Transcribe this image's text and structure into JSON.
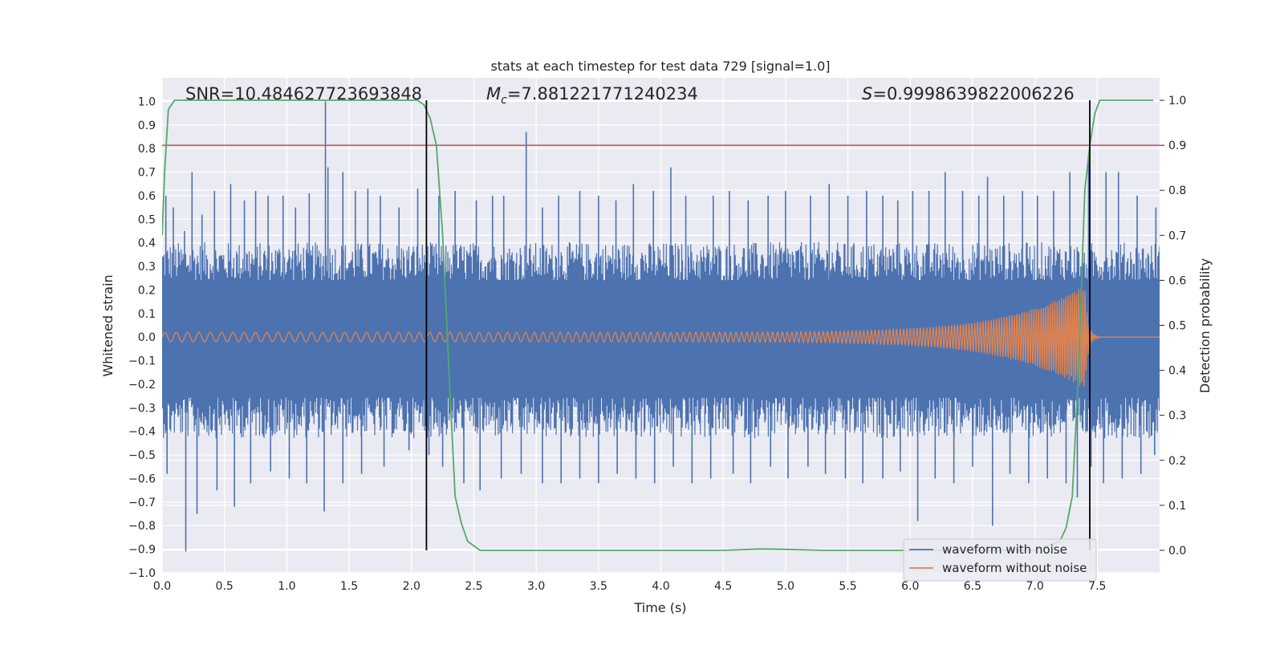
{
  "chart_data": {
    "type": "line",
    "title": "stats at each timestep for test data 729 [signal=1.0]",
    "xlabel": "Time (s)",
    "ylabel_left": "Whitened strain",
    "ylabel_right": "Detection probability",
    "xlim": [
      0.0,
      8.0
    ],
    "ylim_left": [
      -1.0,
      1.1
    ],
    "ylim_right": [
      -0.05,
      1.05
    ],
    "x_ticks": [
      "0.0",
      "0.5",
      "1.0",
      "1.5",
      "2.0",
      "2.5",
      "3.0",
      "3.5",
      "4.0",
      "4.5",
      "5.0",
      "5.5",
      "6.0",
      "6.5",
      "7.0",
      "7.5"
    ],
    "y_ticks_left": [
      "−1.0",
      "−0.9",
      "−0.8",
      "−0.7",
      "−0.6",
      "−0.5",
      "−0.4",
      "−0.3",
      "−0.2",
      "−0.1",
      "0.0",
      "0.1",
      "0.2",
      "0.3",
      "0.4",
      "0.5",
      "0.6",
      "0.7",
      "0.8",
      "0.9",
      "1.0"
    ],
    "y_ticks_right": [
      "0.0",
      "0.1",
      "0.2",
      "0.3",
      "0.4",
      "0.5",
      "0.6",
      "0.7",
      "0.8",
      "0.9",
      "1.0"
    ],
    "grid": true,
    "background": "#eaeaf2",
    "annotations": {
      "snr": "SNR=10.484627723693848",
      "mc_prefix": "M",
      "mc_sub": "c",
      "mc_value": "=7.881221771240234",
      "s_prefix": "S",
      "s_value": "=0.9998639822006226"
    },
    "threshold": {
      "value": 0.9,
      "axis": "right",
      "color": "#c44e52"
    },
    "vertical_lines": [
      2.12,
      7.44
    ],
    "legend": {
      "placement": "lower-right"
    },
    "series": [
      {
        "name": "waveform with noise",
        "color": "#4c72b0",
        "axis": "left",
        "summary": {
          "max_peak": 1.0,
          "min_peak": -0.91,
          "core_band": [
            -0.33,
            0.31
          ]
        },
        "upper_spikes": [
          [
            0.03,
            0.6
          ],
          [
            0.09,
            0.55
          ],
          [
            0.18,
            0.45
          ],
          [
            0.24,
            0.7
          ],
          [
            0.32,
            0.52
          ],
          [
            0.42,
            0.62
          ],
          [
            0.55,
            0.65
          ],
          [
            0.66,
            0.58
          ],
          [
            0.75,
            0.62
          ],
          [
            0.85,
            0.6
          ],
          [
            0.97,
            0.6
          ],
          [
            1.07,
            0.55
          ],
          [
            1.18,
            0.61
          ],
          [
            1.31,
            1.0
          ],
          [
            1.33,
            0.72
          ],
          [
            1.45,
            0.7
          ],
          [
            1.55,
            0.62
          ],
          [
            1.65,
            0.63
          ],
          [
            1.75,
            0.6
          ],
          [
            1.9,
            0.55
          ],
          [
            2.05,
            0.63
          ],
          [
            2.22,
            0.6
          ],
          [
            2.35,
            0.62
          ],
          [
            2.52,
            0.58
          ],
          [
            2.65,
            0.6
          ],
          [
            2.74,
            0.6
          ],
          [
            2.92,
            0.87
          ],
          [
            3.05,
            0.55
          ],
          [
            3.18,
            0.6
          ],
          [
            3.35,
            0.62
          ],
          [
            3.5,
            0.6
          ],
          [
            3.64,
            0.58
          ],
          [
            3.78,
            0.65
          ],
          [
            3.94,
            0.62
          ],
          [
            4.08,
            0.72
          ],
          [
            4.2,
            0.6
          ],
          [
            4.42,
            0.6
          ],
          [
            4.55,
            0.62
          ],
          [
            4.7,
            0.58
          ],
          [
            4.86,
            0.6
          ],
          [
            5.0,
            0.62
          ],
          [
            5.2,
            0.6
          ],
          [
            5.35,
            0.65
          ],
          [
            5.5,
            0.6
          ],
          [
            5.65,
            0.62
          ],
          [
            5.78,
            0.6
          ],
          [
            5.9,
            0.58
          ],
          [
            6.02,
            0.62
          ],
          [
            6.15,
            0.62
          ],
          [
            6.28,
            0.7
          ],
          [
            6.42,
            0.62
          ],
          [
            6.55,
            0.6
          ],
          [
            6.62,
            0.68
          ],
          [
            6.75,
            0.6
          ],
          [
            6.9,
            0.62
          ],
          [
            7.02,
            0.6
          ],
          [
            7.15,
            0.62
          ],
          [
            7.28,
            0.7
          ],
          [
            7.43,
            0.75
          ],
          [
            7.57,
            0.7
          ],
          [
            7.67,
            0.7
          ],
          [
            7.82,
            0.6
          ],
          [
            7.97,
            0.55
          ]
        ],
        "lower_spikes": [
          [
            0.04,
            -0.58
          ],
          [
            0.19,
            -0.91
          ],
          [
            0.28,
            -0.75
          ],
          [
            0.44,
            -0.65
          ],
          [
            0.58,
            -0.72
          ],
          [
            0.71,
            -0.62
          ],
          [
            0.87,
            -0.57
          ],
          [
            1.02,
            -0.6
          ],
          [
            1.16,
            -0.62
          ],
          [
            1.3,
            -0.74
          ],
          [
            1.45,
            -0.62
          ],
          [
            1.6,
            -0.58
          ],
          [
            1.78,
            -0.55
          ],
          [
            1.98,
            -0.48
          ],
          [
            2.14,
            -0.5
          ],
          [
            2.25,
            -0.55
          ],
          [
            2.42,
            -0.62
          ],
          [
            2.55,
            -0.65
          ],
          [
            2.72,
            -0.6
          ],
          [
            2.88,
            -0.58
          ],
          [
            3.05,
            -0.62
          ],
          [
            3.2,
            -0.62
          ],
          [
            3.35,
            -0.6
          ],
          [
            3.5,
            -0.62
          ],
          [
            3.65,
            -0.58
          ],
          [
            3.8,
            -0.6
          ],
          [
            3.95,
            -0.62
          ],
          [
            4.1,
            -0.55
          ],
          [
            4.25,
            -0.62
          ],
          [
            4.4,
            -0.6
          ],
          [
            4.58,
            -0.58
          ],
          [
            4.72,
            -0.62
          ],
          [
            4.88,
            -0.55
          ],
          [
            5.02,
            -0.6
          ],
          [
            5.18,
            -0.55
          ],
          [
            5.32,
            -0.58
          ],
          [
            5.48,
            -0.6
          ],
          [
            5.62,
            -0.62
          ],
          [
            5.78,
            -0.6
          ],
          [
            5.92,
            -0.57
          ],
          [
            6.06,
            -0.78
          ],
          [
            6.2,
            -0.6
          ],
          [
            6.35,
            -0.62
          ],
          [
            6.5,
            -0.55
          ],
          [
            6.66,
            -0.8
          ],
          [
            6.8,
            -0.58
          ],
          [
            6.95,
            -0.62
          ],
          [
            7.1,
            -0.6
          ],
          [
            7.25,
            -0.62
          ],
          [
            7.34,
            -0.68
          ],
          [
            7.45,
            -0.55
          ],
          [
            7.55,
            -0.62
          ],
          [
            7.7,
            -0.6
          ],
          [
            7.85,
            -0.58
          ],
          [
            7.96,
            -0.5
          ]
        ]
      },
      {
        "name": "waveform without noise",
        "color": "#dd8452",
        "axis": "left",
        "chirp": {
          "f0": 11,
          "f1": 60,
          "t_merge": 7.4,
          "a0": 0.02,
          "peak": 0.22,
          "ringdown": 0.001
        }
      },
      {
        "name": "detection probability",
        "color": "#55a868",
        "axis": "right",
        "x": [
          0.0,
          0.02,
          0.05,
          0.1,
          0.15,
          0.3,
          0.6,
          1.0,
          1.5,
          1.9,
          2.05,
          2.1,
          2.15,
          2.2,
          2.25,
          2.3,
          2.35,
          2.4,
          2.45,
          2.55,
          3.0,
          3.5,
          4.0,
          4.5,
          4.8,
          5.0,
          5.3,
          5.6,
          6.0,
          6.5,
          7.0,
          7.2,
          7.25,
          7.3,
          7.35,
          7.4,
          7.44,
          7.48,
          7.52,
          7.6,
          7.8,
          7.95
        ],
        "y": [
          0.7,
          0.84,
          0.98,
          1.0,
          1.0,
          1.0,
          1.0,
          1.0,
          1.0,
          1.0,
          1.0,
          0.99,
          0.96,
          0.9,
          0.7,
          0.4,
          0.12,
          0.06,
          0.02,
          0.0,
          0.0,
          0.0,
          0.0,
          0.0,
          0.003,
          0.002,
          0.0,
          0.0,
          0.0,
          0.0,
          0.0,
          0.02,
          0.05,
          0.12,
          0.4,
          0.8,
          0.9,
          0.97,
          1.0,
          1.0,
          1.0,
          1.0
        ]
      }
    ]
  }
}
